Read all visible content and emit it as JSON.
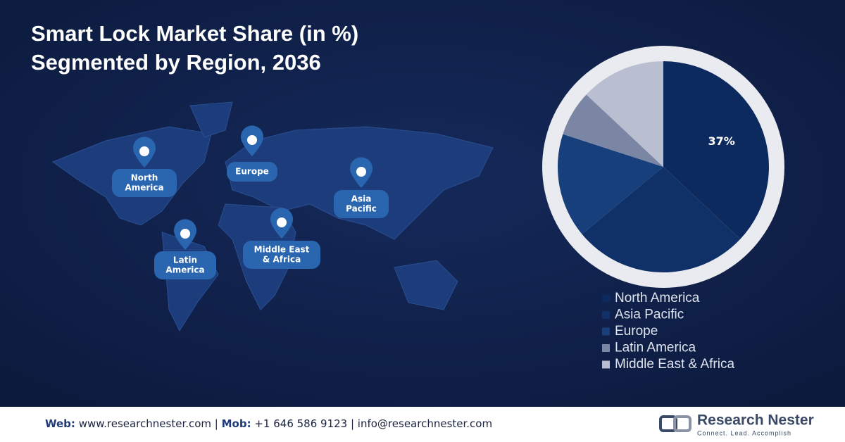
{
  "chart_data": {
    "type": "pie",
    "title": [
      "Smart Lock Market Share (in %)",
      "Segmented by Region, 2036"
    ],
    "categories": [
      "North America",
      "Asia Pacific",
      "Europe",
      "Latin America",
      "Middle East & Africa"
    ],
    "values": [
      37,
      27,
      16,
      7,
      13
    ],
    "value_labels": [
      "37%",
      null,
      null,
      null,
      null
    ],
    "colors": [
      "#0d2a5e",
      "#0f3167",
      "#163f7c",
      "#7b86a5",
      "#b9bed1"
    ],
    "legend": "bottom-right"
  },
  "map_labels": [
    [
      "North",
      "America"
    ],
    [
      "Europe"
    ],
    [
      "Asia",
      "Pacific"
    ],
    [
      "Middle East",
      "& Africa"
    ],
    [
      "Latin",
      "America"
    ]
  ],
  "footer": {
    "contact": [
      "Web:",
      " www.researchnester.com | ",
      "Mob:",
      " +1 646 586 9123 | info@researchnester.com"
    ],
    "brand": "Research Nester",
    "tagline": "Connect. Lead. Accomplish"
  }
}
